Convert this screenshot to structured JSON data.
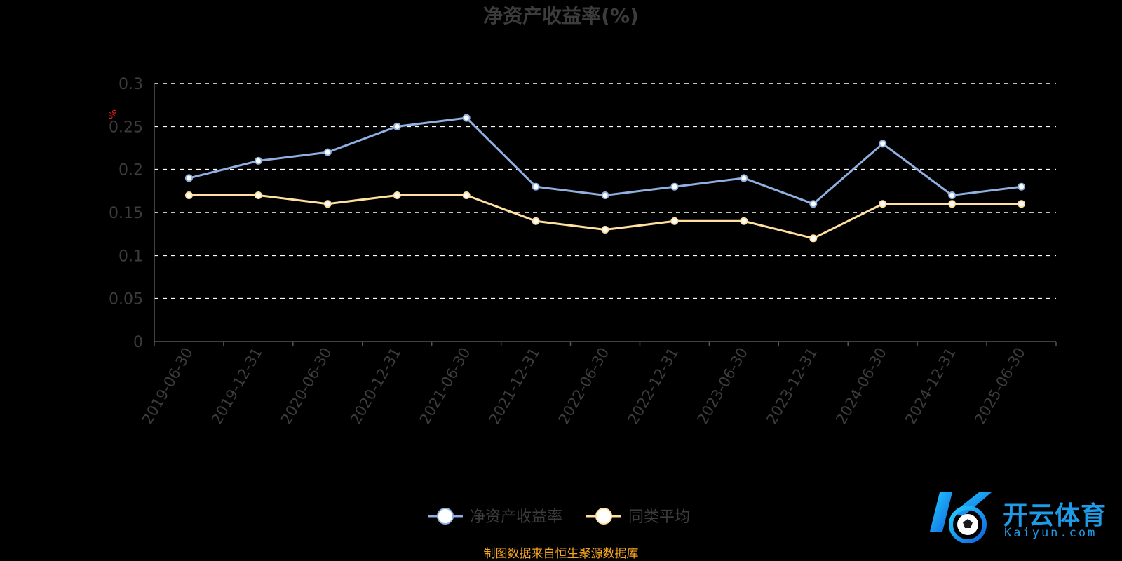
{
  "chart_data": {
    "type": "line",
    "title": "净资产收益率(%)",
    "ylabel": "%",
    "xlabel": "",
    "ylim": [
      0,
      0.3
    ],
    "yticks": [
      0,
      0.05,
      0.1,
      0.15,
      0.2,
      0.25,
      0.3
    ],
    "ytick_labels": [
      "0",
      "0.05",
      "0.1",
      "0.15",
      "0.2",
      "0.25",
      "0.3"
    ],
    "grid": true,
    "legend": "bottom-center",
    "categories": [
      "2019-06-30",
      "2019-12-31",
      "2020-06-30",
      "2020-12-31",
      "2021-06-30",
      "2021-12-31",
      "2022-06-30",
      "2022-12-31",
      "2023-06-30",
      "2023-12-31",
      "2024-06-30",
      "2024-12-31",
      "2025-06-30"
    ],
    "series": [
      {
        "name": "净资产收益率",
        "color": "#8fb0e0",
        "values": [
          0.19,
          0.21,
          0.22,
          0.25,
          0.26,
          0.18,
          0.17,
          0.18,
          0.19,
          0.16,
          0.23,
          0.17,
          0.18
        ]
      },
      {
        "name": "同类平均",
        "color": "#ffe0a0",
        "values": [
          0.17,
          0.17,
          0.16,
          0.17,
          0.17,
          0.14,
          0.13,
          0.14,
          0.14,
          0.12,
          0.16,
          0.16,
          0.16
        ]
      }
    ],
    "source": "制图数据来自恒生聚源数据库",
    "source_color": "#f5a623",
    "unit_color": "#e02020"
  },
  "logo": {
    "cn": "开云体育",
    "en": "Kaiyun.com",
    "color": "#1e9be8"
  }
}
